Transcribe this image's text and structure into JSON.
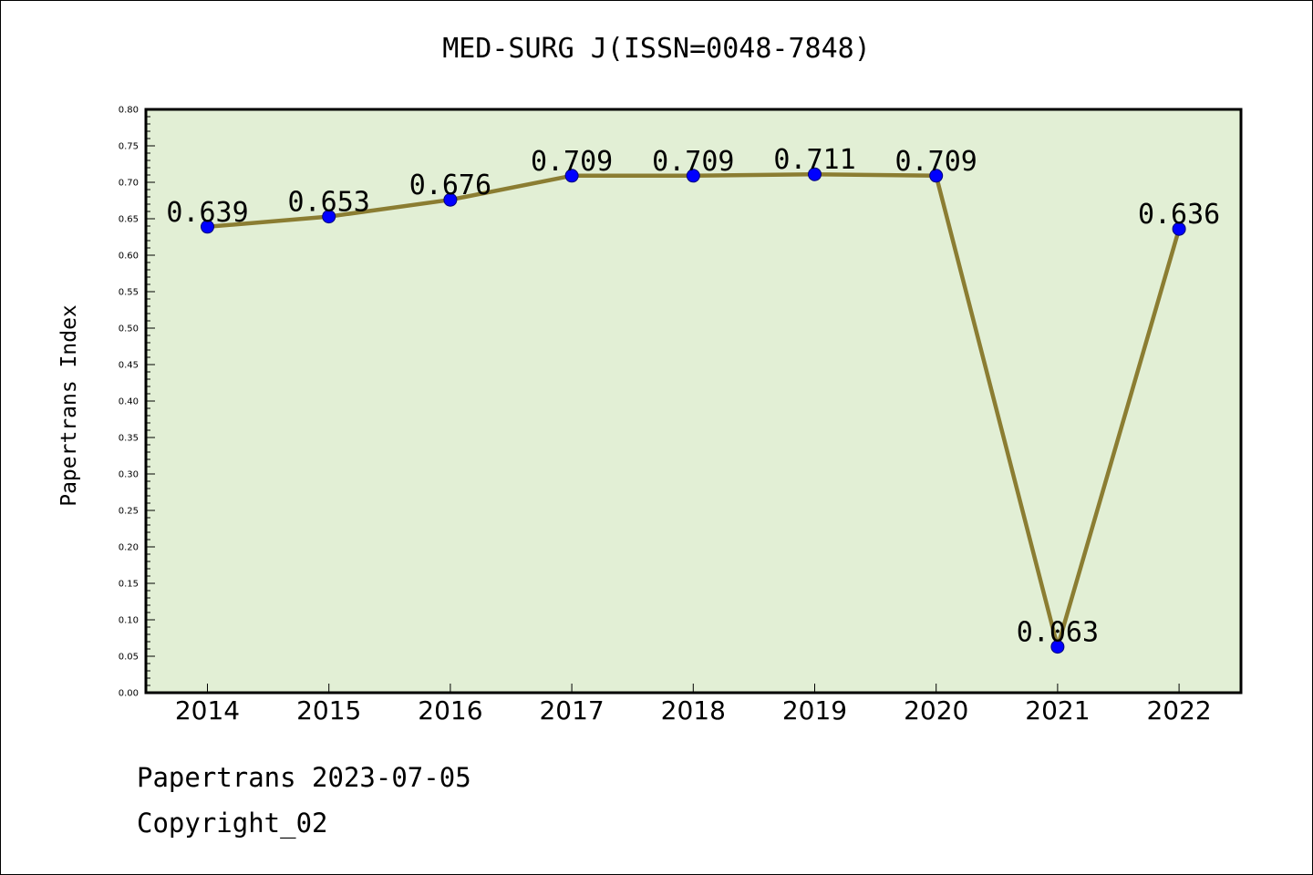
{
  "chart_data": {
    "type": "line",
    "title": "MED-SURG J(ISSN=0048-7848)",
    "xlabel": "",
    "ylabel": "Papertrans Index",
    "categories": [
      "2014",
      "2015",
      "2016",
      "2017",
      "2018",
      "2019",
      "2020",
      "2021",
      "2022"
    ],
    "series": [
      {
        "values": [
          0.639,
          0.653,
          0.676,
          0.709,
          0.709,
          0.711,
          0.709,
          0.063,
          0.636
        ]
      }
    ],
    "data_labels": [
      "0.639",
      "0.653",
      "0.676",
      "0.709",
      "0.709",
      "0.711",
      "0.709",
      "0.063",
      "0.636"
    ],
    "ylim": [
      0,
      0.8
    ],
    "yticks": [
      "0.00",
      "0.05",
      "0.10",
      "0.15",
      "0.20",
      "0.25",
      "0.30",
      "0.35",
      "0.40",
      "0.45",
      "0.50",
      "0.55",
      "0.60",
      "0.65",
      "0.70",
      "0.75",
      "0.80"
    ],
    "grid": false,
    "colors": {
      "line": "#8b7d32",
      "marker": "#0000ff",
      "plot_background": "#e2efd5"
    }
  },
  "footer": {
    "line1": "Papertrans 2023-07-05",
    "line2": "Copyright_02"
  }
}
